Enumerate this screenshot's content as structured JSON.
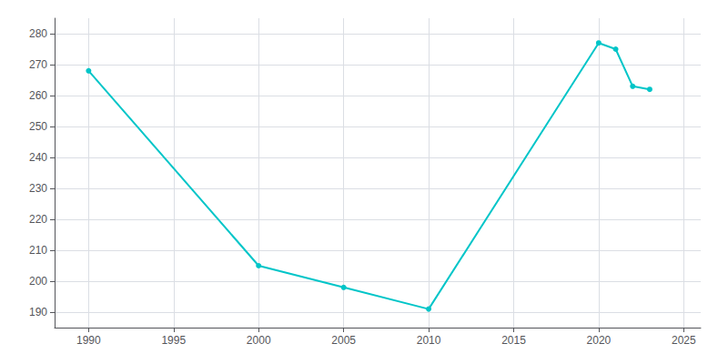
{
  "chart_data": {
    "type": "line",
    "x": [
      1990,
      2000,
      2005,
      2010,
      2020,
      2021,
      2022,
      2023
    ],
    "values": [
      268,
      205,
      198,
      191,
      277,
      275,
      263,
      262
    ],
    "color": "#00c5c8",
    "marker": "circle",
    "xlim": [
      1988,
      2026
    ],
    "xticks": [
      1990,
      1995,
      2000,
      2005,
      2010,
      2015,
      2020,
      2025
    ],
    "ylim": [
      185,
      285
    ],
    "yticks": [
      190,
      200,
      210,
      220,
      230,
      240,
      250,
      260,
      270,
      280
    ],
    "grid": true
  }
}
